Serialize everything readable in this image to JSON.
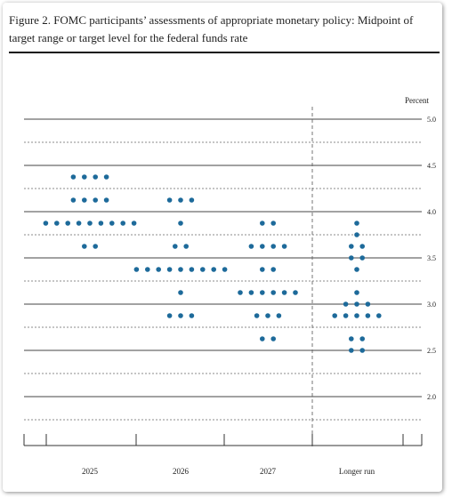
{
  "header": {
    "title": "Figure 2.  FOMC participants’ assessments of appropriate monetary policy:  Midpoint of target range or target level for the federal funds rate"
  },
  "chart_data": {
    "type": "scatter",
    "unit_label": "Percent",
    "categories": [
      "2025",
      "2026",
      "2027",
      "Longer run"
    ],
    "ylim": [
      1.75,
      5.125
    ],
    "y_ticks": [
      2.0,
      2.5,
      3.0,
      3.5,
      4.0,
      4.5,
      5.0
    ],
    "y_tick_labels": [
      "2.0",
      "2.5",
      "3.0",
      "3.5",
      "4.0",
      "4.5",
      "5.0"
    ],
    "minor_gridlines": true,
    "dot_color": "#1d6a9a",
    "dots": {
      "2025": [
        {
          "rate": 4.375,
          "count": 4
        },
        {
          "rate": 4.125,
          "count": 4
        },
        {
          "rate": 3.875,
          "count": 9
        },
        {
          "rate": 3.625,
          "count": 2
        }
      ],
      "2026": [
        {
          "rate": 4.125,
          "count": 3
        },
        {
          "rate": 3.875,
          "count": 1
        },
        {
          "rate": 3.625,
          "count": 2
        },
        {
          "rate": 3.375,
          "count": 9
        },
        {
          "rate": 3.125,
          "count": 1
        },
        {
          "rate": 2.875,
          "count": 3
        }
      ],
      "2027": [
        {
          "rate": 3.875,
          "count": 2
        },
        {
          "rate": 3.625,
          "count": 4
        },
        {
          "rate": 3.375,
          "count": 2
        },
        {
          "rate": 3.125,
          "count": 6
        },
        {
          "rate": 2.875,
          "count": 3
        },
        {
          "rate": 2.625,
          "count": 2
        }
      ],
      "Longer run": [
        {
          "rate": 3.875,
          "count": 1
        },
        {
          "rate": 3.75,
          "count": 1
        },
        {
          "rate": 3.625,
          "count": 2
        },
        {
          "rate": 3.5,
          "count": 2
        },
        {
          "rate": 3.375,
          "count": 1
        },
        {
          "rate": 3.125,
          "count": 1
        },
        {
          "rate": 3.0,
          "count": 3
        },
        {
          "rate": 2.875,
          "count": 5
        },
        {
          "rate": 2.625,
          "count": 2
        },
        {
          "rate": 2.5,
          "count": 2
        }
      ]
    }
  }
}
